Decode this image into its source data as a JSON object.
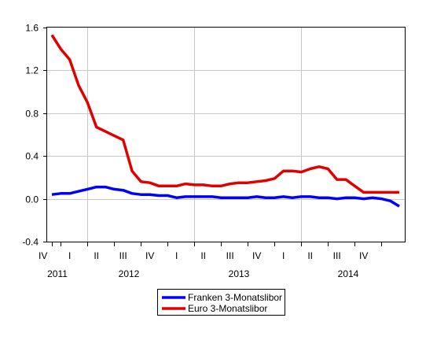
{
  "chart_data": {
    "type": "line",
    "title": "",
    "xlabel": "",
    "ylabel": "",
    "ylim": [
      -0.4,
      1.6
    ],
    "y_ticks": [
      "-0.4",
      "0.0",
      "0.4",
      "0.8",
      "1.2",
      "1.6"
    ],
    "y_tick_values": [
      -0.4,
      0.0,
      0.4,
      0.8,
      1.2,
      1.6
    ],
    "grid": true,
    "legend_position": "bottom-center",
    "quarter_labels": [
      "IV",
      "I",
      "II",
      "III",
      "IV",
      "I",
      "II",
      "III",
      "IV",
      "I",
      "II",
      "III",
      "IV"
    ],
    "year_labels": [
      "2011",
      "2012",
      "2013",
      "2014"
    ],
    "x_range_months": [
      "2011-09",
      "2014-12"
    ],
    "x": [
      "2011-09",
      "2011-10",
      "2011-11",
      "2011-12",
      "2012-01",
      "2012-02",
      "2012-03",
      "2012-04",
      "2012-05",
      "2012-06",
      "2012-07",
      "2012-08",
      "2012-09",
      "2012-10",
      "2012-11",
      "2012-12",
      "2013-01",
      "2013-02",
      "2013-03",
      "2013-04",
      "2013-05",
      "2013-06",
      "2013-07",
      "2013-08",
      "2013-09",
      "2013-10",
      "2013-11",
      "2013-12",
      "2014-01",
      "2014-02",
      "2014-03",
      "2014-04",
      "2014-05",
      "2014-06",
      "2014-07",
      "2014-08",
      "2014-09",
      "2014-10",
      "2014-11",
      "2014-12"
    ],
    "series": [
      {
        "name": "Franken 3-Monatslibor",
        "color": "#0000ff",
        "values": [
          0.04,
          0.05,
          0.05,
          0.07,
          0.09,
          0.11,
          0.11,
          0.09,
          0.08,
          0.05,
          0.04,
          0.04,
          0.03,
          0.03,
          0.01,
          0.02,
          0.02,
          0.02,
          0.02,
          0.01,
          0.01,
          0.01,
          0.01,
          0.02,
          0.01,
          0.01,
          0.02,
          0.01,
          0.02,
          0.02,
          0.01,
          0.01,
          0.0,
          0.01,
          0.01,
          0.0,
          0.01,
          0.0,
          -0.02,
          -0.07
        ]
      },
      {
        "name": "Euro 3-Monatslibor",
        "color": "#e00000",
        "values": [
          1.53,
          1.4,
          1.3,
          1.06,
          0.9,
          0.67,
          0.63,
          0.59,
          0.55,
          0.26,
          0.16,
          0.15,
          0.12,
          0.12,
          0.12,
          0.14,
          0.13,
          0.13,
          0.12,
          0.12,
          0.14,
          0.15,
          0.15,
          0.16,
          0.17,
          0.19,
          0.26,
          0.26,
          0.25,
          0.28,
          0.3,
          0.28,
          0.18,
          0.18,
          0.12,
          0.06,
          0.06,
          0.06,
          0.06,
          0.06
        ]
      }
    ]
  }
}
